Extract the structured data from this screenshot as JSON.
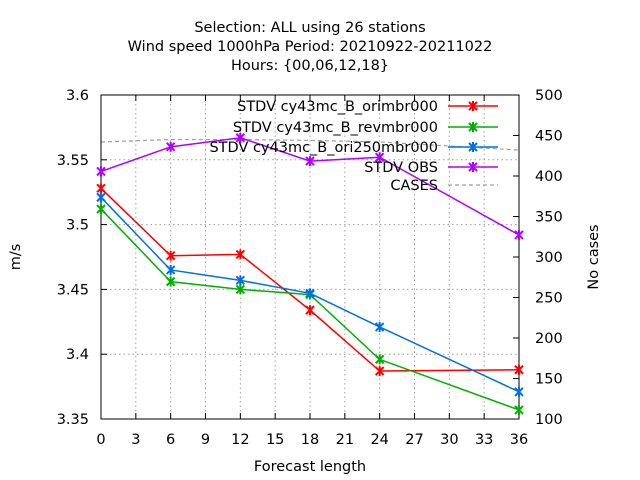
{
  "chart_data": {
    "type": "line",
    "title": [
      "Selection: ALL using    26 stations",
      "Wind speed 1000hPa   Period: 20210922-20211022",
      "Hours: {00,06,12,18}"
    ],
    "xlabel": "Forecast length",
    "ylabel": "m/s",
    "y2label": "No cases",
    "xlim": [
      0,
      36
    ],
    "ylim": [
      3.35,
      3.6
    ],
    "y2lim": [
      100,
      500
    ],
    "x_ticks": [
      "0",
      "3",
      "6",
      "9",
      "12",
      "15",
      "18",
      "21",
      "24",
      "27",
      "30",
      "33",
      "36"
    ],
    "y_ticks": [
      "3.35",
      "3.4",
      "3.45",
      "3.5",
      "3.55",
      "3.6"
    ],
    "y2_ticks": [
      "100",
      "150",
      "200",
      "250",
      "300",
      "350",
      "400",
      "450",
      "500"
    ],
    "grid": true,
    "legend_position": "top-right",
    "series": [
      {
        "name": "STDV cy43mc_B_orimbr000",
        "color": "#ff0000",
        "axis": "left",
        "x": [
          0,
          6,
          12,
          18,
          24,
          36
        ],
        "values": [
          3.528,
          3.476,
          3.477,
          3.434,
          3.387,
          3.388
        ]
      },
      {
        "name": "STDV cy43mc_B_revmbr000",
        "color": "#00b000",
        "axis": "left",
        "x": [
          0,
          6,
          12,
          18,
          24,
          36
        ],
        "values": [
          3.512,
          3.456,
          3.45,
          3.446,
          3.396,
          3.357
        ]
      },
      {
        "name": "STDV cy43mc_B_ori250mbr000",
        "color": "#0070e0",
        "axis": "left",
        "x": [
          0,
          6,
          12,
          18,
          24,
          36
        ],
        "values": [
          3.521,
          3.465,
          3.457,
          3.447,
          3.421,
          3.371
        ]
      },
      {
        "name": "STDV OBS",
        "color": "#b000ff",
        "axis": "left",
        "x": [
          0,
          6,
          12,
          18,
          24,
          36
        ],
        "values": [
          3.541,
          3.56,
          3.567,
          3.549,
          3.552,
          3.492
        ]
      },
      {
        "name": "CASES",
        "color": "#a0a0a0",
        "axis": "right",
        "dashed": true,
        "x": [
          0,
          6,
          12,
          18,
          24,
          36
        ],
        "values": [
          442,
          445,
          445,
          444,
          442,
          432
        ]
      }
    ]
  }
}
